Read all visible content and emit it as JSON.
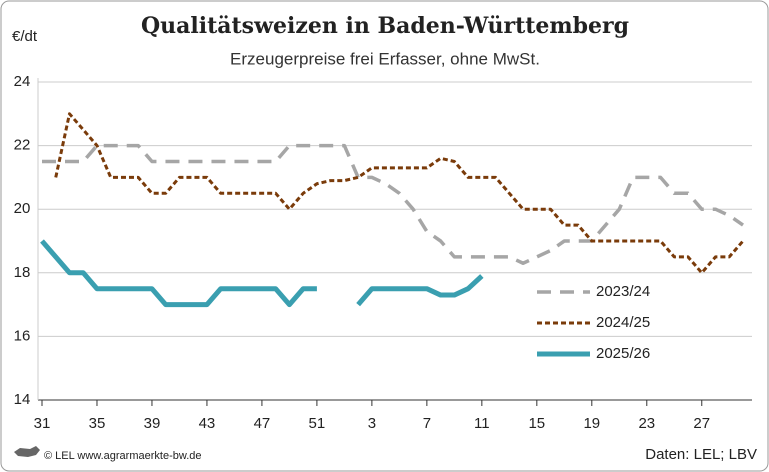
{
  "chart_data": {
    "type": "line",
    "title": "Qualitätsweizen in Baden-Württemberg",
    "subtitle": "Erzeugerpreise frei Erfasser, ohne MwSt.",
    "y_label": "€/dt",
    "source_left": "© LEL www.agrarmaerkte-bw.de",
    "source_right": "Daten: LEL; LBV",
    "categories": [
      "31",
      null,
      null,
      null,
      "35",
      null,
      null,
      null,
      "39",
      null,
      null,
      null,
      "43",
      null,
      null,
      null,
      "47",
      null,
      null,
      null,
      "51",
      null,
      null,
      null,
      "3",
      null,
      null,
      null,
      "7",
      null,
      null,
      null,
      "11",
      null,
      null,
      null,
      "15",
      null,
      null,
      null,
      "19",
      null,
      null,
      null,
      "23",
      null,
      null,
      null,
      "27",
      null,
      null,
      null
    ],
    "series": [
      {
        "name": "2023/24",
        "color": "#a6a6a6",
        "style": "dashed",
        "values": [
          21.5,
          21.5,
          21.5,
          21.5,
          22,
          22,
          22,
          22,
          21.5,
          21.5,
          21.5,
          21.5,
          21.5,
          21.5,
          21.5,
          21.5,
          21.5,
          21.5,
          22,
          22,
          22,
          22,
          22,
          21,
          21,
          20.8,
          20.5,
          20,
          19.3,
          19,
          18.5,
          18.5,
          18.5,
          18.5,
          18.5,
          18.3,
          18.5,
          18.7,
          19,
          19,
          19,
          19.5,
          20,
          21,
          21,
          21,
          20.5,
          20.5,
          20,
          20,
          19.8,
          19.5
        ]
      },
      {
        "name": "2024/25",
        "color": "#7a3b0a",
        "style": "dotted",
        "values": [
          null,
          21,
          23,
          22.5,
          22,
          21,
          21,
          21,
          20.5,
          20.5,
          21,
          21,
          21,
          20.5,
          20.5,
          20.5,
          20.5,
          20.5,
          20,
          20.5,
          20.8,
          20.9,
          20.9,
          21,
          21.3,
          21.3,
          21.3,
          21.3,
          21.3,
          21.6,
          21.5,
          21,
          21,
          21,
          20.5,
          20,
          20,
          20,
          19.5,
          19.5,
          19,
          19,
          19,
          19,
          19,
          19,
          18.5,
          18.5,
          18,
          18.5,
          18.5,
          19
        ]
      },
      {
        "name": "2025/26",
        "color": "#3a9fb0",
        "style": "solid",
        "values": [
          19,
          18.5,
          18,
          18,
          17.5,
          17.5,
          17.5,
          17.5,
          17.5,
          17,
          17,
          17,
          17,
          17.5,
          17.5,
          17.5,
          17.5,
          17.5,
          17,
          17.5,
          17.5,
          null,
          null,
          17,
          17.5,
          17.5,
          17.5,
          17.5,
          17.5,
          17.3,
          17.3,
          17.5,
          17.9,
          null,
          null,
          null,
          null,
          null,
          null,
          null,
          null,
          null,
          null,
          null,
          null,
          null,
          null,
          null,
          null,
          null,
          null,
          null
        ]
      }
    ],
    "ylim": [
      14,
      24
    ],
    "yticks": [
      14,
      16,
      18,
      20,
      22,
      24
    ],
    "grid": true,
    "legend": "right"
  }
}
